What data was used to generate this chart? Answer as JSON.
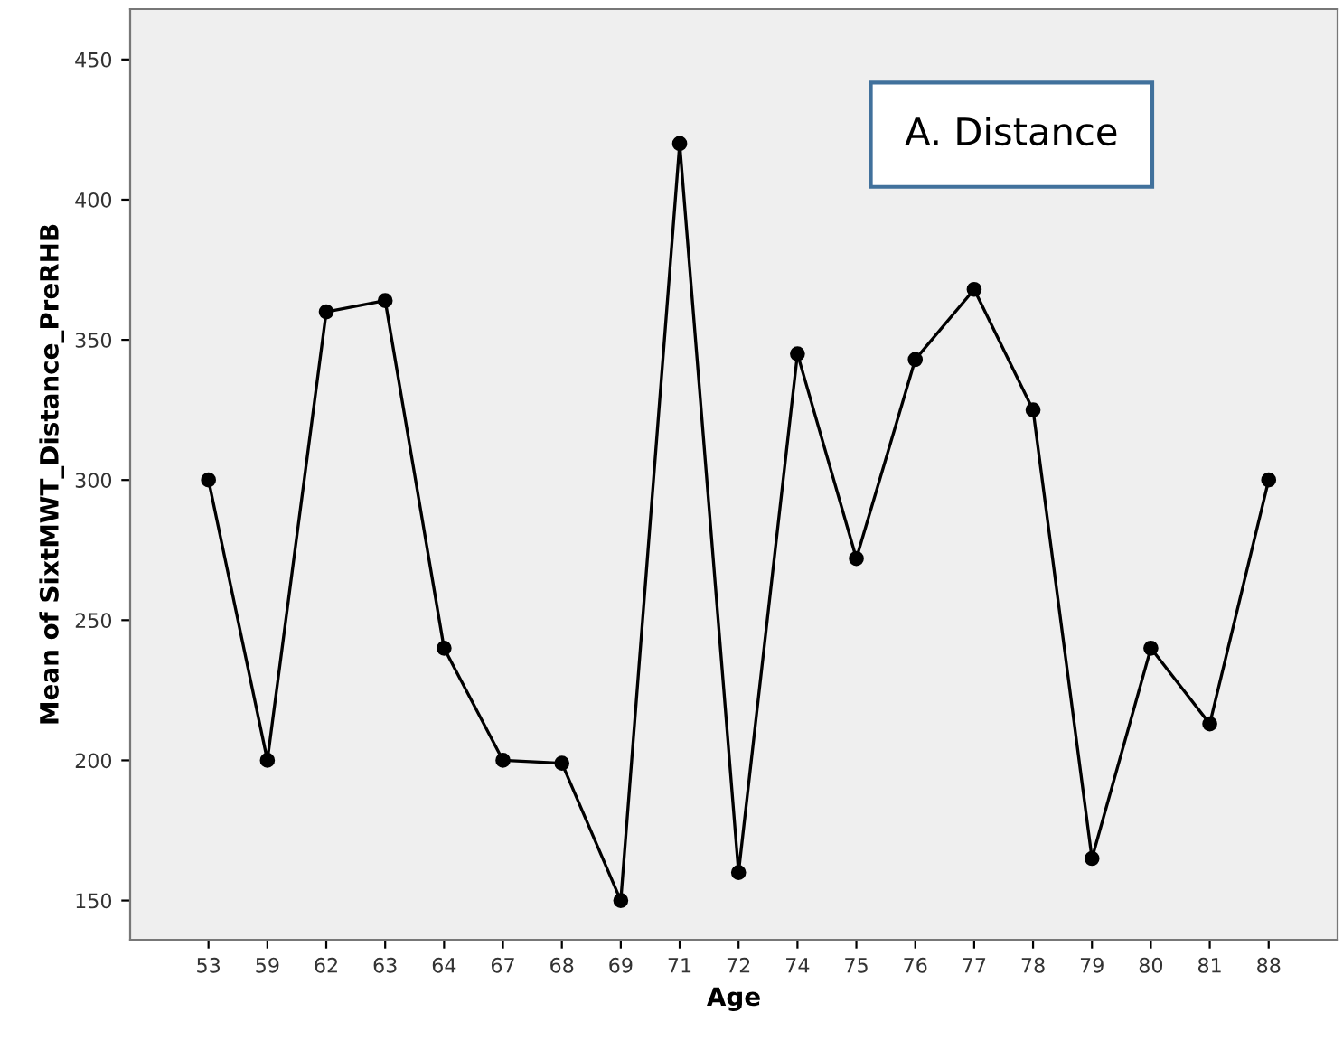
{
  "chart_data": {
    "type": "line",
    "xlabel": "Age",
    "ylabel": "Mean of SixtMWT_Distance_PreRHB",
    "categories": [
      "53",
      "59",
      "62",
      "63",
      "64",
      "67",
      "68",
      "69",
      "71",
      "72",
      "74",
      "75",
      "76",
      "77",
      "78",
      "79",
      "80",
      "81",
      "88"
    ],
    "series": [
      {
        "color": "#000000",
        "values": [
          300,
          200,
          360,
          364,
          240,
          200,
          199,
          150,
          420,
          160,
          345,
          272,
          343,
          368,
          325,
          165,
          240,
          213,
          300
        ]
      }
    ],
    "ylim": [
      136,
      468
    ],
    "yticks": [
      150,
      200,
      250,
      300,
      350,
      400,
      450
    ],
    "grid": false,
    "legend": false,
    "marker": "circle",
    "line_style": "solid",
    "annotations": [
      "A. Distance"
    ]
  }
}
